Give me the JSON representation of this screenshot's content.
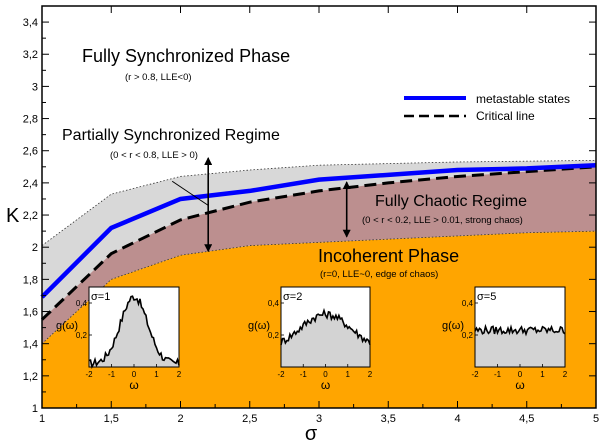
{
  "chart_data": {
    "type": "line",
    "xlabel": "σ",
    "ylabel": "K",
    "xlim": [
      1,
      5
    ],
    "ylim": [
      1,
      3.5
    ],
    "x_ticks": [
      "1",
      "1,5",
      "2",
      "2,5",
      "3",
      "3,5",
      "4",
      "4,5",
      "5"
    ],
    "y_ticks": [
      "1",
      "1,2",
      "1,4",
      "1,6",
      "1,8",
      "2",
      "2,2",
      "2,4",
      "2,6",
      "2,8",
      "3",
      "3,2",
      "3,4"
    ],
    "series": [
      {
        "name": "metastable states",
        "color": "#0000ff",
        "x": [
          1,
          1.5,
          2,
          2.5,
          3,
          3.5,
          4,
          4.5,
          5
        ],
        "y": [
          1.69,
          2.12,
          2.3,
          2.35,
          2.42,
          2.45,
          2.48,
          2.49,
          2.51
        ]
      },
      {
        "name": "Critical line",
        "color": "#000000",
        "x": [
          1,
          1.5,
          2,
          2.5,
          3,
          3.5,
          4,
          4.5,
          5
        ],
        "y": [
          1.55,
          1.96,
          2.17,
          2.28,
          2.35,
          2.4,
          2.44,
          2.47,
          2.5
        ]
      }
    ],
    "regions": {
      "orange_colour": "#ffa500",
      "grey_colour": "#d8d8d8",
      "brown_colour": "#bc8f8f",
      "orange_top": {
        "x": [
          1,
          1.5,
          2,
          2.5,
          3,
          3.5,
          4,
          4.5,
          5
        ],
        "y": [
          1.4,
          1.8,
          1.95,
          2.01,
          2.03,
          2.05,
          2.07,
          2.09,
          2.1
        ]
      },
      "grey_top": {
        "x": [
          1,
          1.5,
          2,
          2.5,
          3,
          3.5,
          4,
          4.5,
          5
        ],
        "y": [
          2.01,
          2.33,
          2.44,
          2.48,
          2.51,
          2.52,
          2.53,
          2.535,
          2.54
        ]
      }
    },
    "arrows": [
      {
        "x": 2.2,
        "y_from": 2.53,
        "y_to": 2.0
      },
      {
        "x": 3.2,
        "y_from": 2.38,
        "y_to": 2.09
      }
    ],
    "pointer": {
      "x_from": 1.94,
      "y_from": 2.41,
      "x_to": 2.2,
      "y_to": 2.26
    },
    "legend": {
      "entries": [
        "metastable states",
        "Critical line"
      ],
      "position": "top-right"
    },
    "annotations": {
      "fully_sync_title": "Fully Synchronized Phase",
      "fully_sync_sub": "(r > 0.8, LLE<0)",
      "partial_title": "Partially Synchronized Regime",
      "partial_sub": "(0 < r < 0.8,  LLE > 0)",
      "chaotic_title": "Fully Chaotic Regime",
      "chaotic_sub": "(0 < r < 0.2, LLE > 0.01, strong chaos)",
      "incoherent_title": "Incoherent Phase",
      "incoherent_sub": "(r=0, LLE~0, edge of chaos)"
    },
    "insets": [
      {
        "title": "σ=1",
        "ylabel": "g(ω)",
        "xlabel": "ω",
        "x_ticks": [
          "-2",
          "-1",
          "0",
          "1",
          "2"
        ],
        "y_ticks": [
          "0,2",
          "0,4"
        ],
        "shape": "gaussian",
        "peak": 0.42,
        "width": 0.85,
        "base": 0.02
      },
      {
        "title": "σ=2",
        "ylabel": "g(ω)",
        "xlabel": "ω",
        "x_ticks": [
          "-2",
          "-1",
          "0",
          "1",
          "2"
        ],
        "y_ticks": [
          "0,2",
          "0,4"
        ],
        "shape": "gaussian",
        "peak": 0.22,
        "width": 1.6,
        "base": 0.11
      },
      {
        "title": "σ=5",
        "ylabel": "g(ω)",
        "xlabel": "ω",
        "x_ticks": [
          "-2",
          "-1",
          "0",
          "1",
          "2"
        ],
        "y_ticks": [
          "0,2",
          "0,4"
        ],
        "shape": "flat",
        "peak": 0.0,
        "width": 1.0,
        "base": 0.23
      }
    ]
  }
}
